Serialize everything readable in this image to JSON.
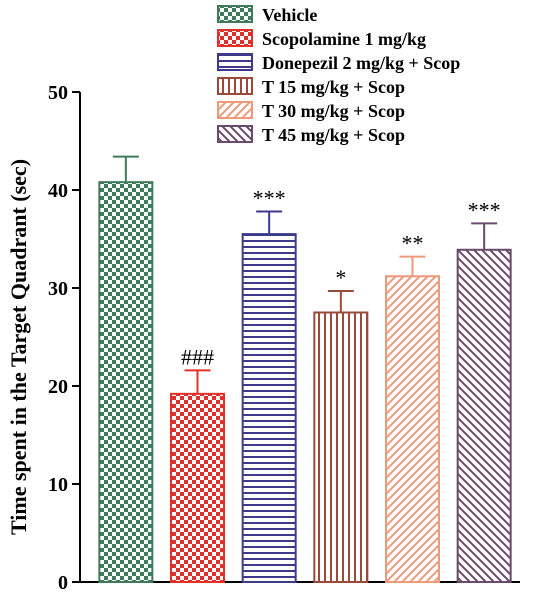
{
  "chart_data": {
    "type": "bar",
    "ylabel": "Time spent in the Target Quadrant (sec)",
    "ylim": [
      0,
      50
    ],
    "yticks": [
      0,
      10,
      20,
      30,
      40,
      50
    ],
    "grid": false,
    "legend_position": "top",
    "series": [
      {
        "name": "Vehicle",
        "value": 40.8,
        "error": 2.6,
        "annotation": "",
        "color": "#3f7a5a",
        "pattern": "checker"
      },
      {
        "name": "Scopolamine 1 mg/kg",
        "value": 19.2,
        "error": 2.4,
        "annotation": "###",
        "color": "#e0302a",
        "pattern": "checker"
      },
      {
        "name": "Donepezil 2 mg/kg + Scop",
        "value": 35.5,
        "error": 2.3,
        "annotation": "***",
        "color": "#3d3a8a",
        "pattern": "hlines"
      },
      {
        "name": "T 15 mg/kg + Scop",
        "value": 27.5,
        "error": 2.2,
        "annotation": "*",
        "color": "#9a4a3a",
        "pattern": "vlines"
      },
      {
        "name": "T 30 mg/kg + Scop",
        "value": 31.2,
        "error": 2.0,
        "annotation": "**",
        "color": "#ee9a7a",
        "pattern": "diag"
      },
      {
        "name": "T 45 mg/kg + Scop",
        "value": 33.9,
        "error": 2.7,
        "annotation": "***",
        "color": "#6a4a6a",
        "pattern": "antidiag"
      }
    ]
  }
}
